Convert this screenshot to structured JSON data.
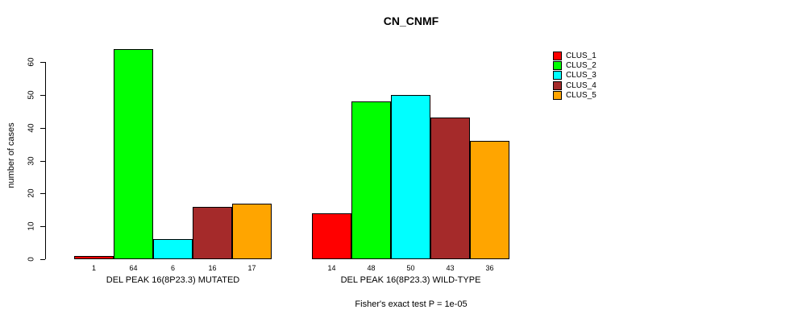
{
  "title": "CN_CNMF",
  "ylabel": "number of cases",
  "footnote": "Fisher's exact test P = 1e-05",
  "legend": [
    {
      "label": "CLUS_1",
      "color": "#FF0000"
    },
    {
      "label": "CLUS_2",
      "color": "#00FF00"
    },
    {
      "label": "CLUS_3",
      "color": "#00FFFF"
    },
    {
      "label": "CLUS_4",
      "color": "#A52A2A"
    },
    {
      "label": "CLUS_5",
      "color": "#FFA500"
    }
  ],
  "chart_data": {
    "type": "bar",
    "title": "CN_CNMF",
    "xlabel": "",
    "ylabel": "number of cases",
    "ylim": [
      0,
      60
    ],
    "yticks": [
      0,
      10,
      20,
      30,
      40,
      50,
      60
    ],
    "grid": false,
    "legend_position": "right",
    "bar_value_labels": true,
    "categories": [
      "DEL PEAK 16(8P23.3) MUTATED",
      "DEL PEAK 16(8P23.3) WILD-TYPE"
    ],
    "series": [
      {
        "name": "CLUS_1",
        "color": "#FF0000",
        "values": [
          1,
          14
        ]
      },
      {
        "name": "CLUS_2",
        "color": "#00FF00",
        "values": [
          64,
          48
        ]
      },
      {
        "name": "CLUS_3",
        "color": "#00FFFF",
        "values": [
          6,
          50
        ]
      },
      {
        "name": "CLUS_4",
        "color": "#A52A2A",
        "values": [
          16,
          43
        ]
      },
      {
        "name": "CLUS_5",
        "color": "#FFA500",
        "values": [
          17,
          36
        ]
      }
    ],
    "annotation": "Fisher's exact test P = 1e-05"
  }
}
